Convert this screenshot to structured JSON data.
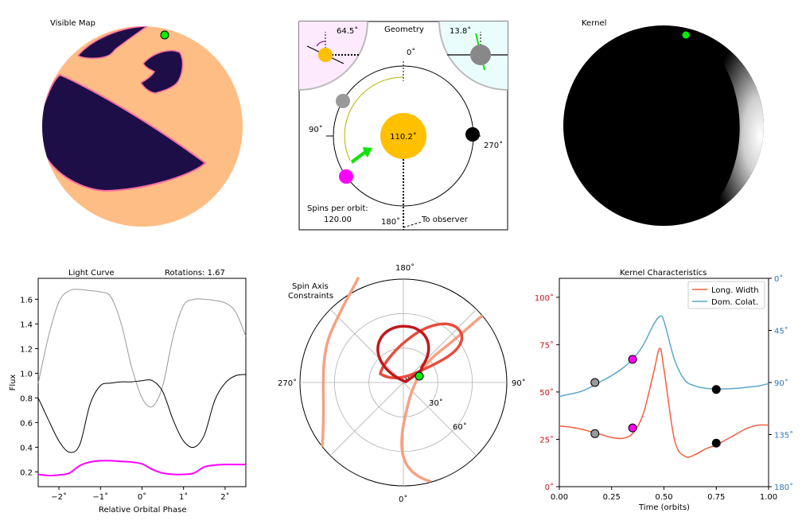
{
  "panels": {
    "visible_map": {
      "title": "Visible Map"
    },
    "geometry": {
      "title": "Geometry",
      "left_inset_angle": "64.5˚",
      "right_inset_angle": "13.8˚",
      "star_label": "110.2˚",
      "angle_labels": {
        "top": "0˚",
        "left": "90˚",
        "right": "270˚",
        "bottom": "180˚"
      },
      "spins_label": "Spins per orbit:",
      "spins_value": "120.00",
      "observer_label": "To observer",
      "colors": {
        "star": "#FFC000",
        "left_inset": "#FDEAFD",
        "right_inset": "#EAFDFD",
        "arrow": "#12E40A",
        "planet_gray": "#999999",
        "planet_magenta": "#FF00FF",
        "planet_black": "#000000"
      }
    },
    "kernel": {
      "title": "Kernel"
    }
  },
  "chart_data": [
    {
      "type": "line",
      "title": "Light Curve",
      "annotation": "Rotations: 1.67",
      "xlabel": "Relative Orbital Phase",
      "ylabel": "Flux",
      "xlim": [
        -2.5,
        2.5
      ],
      "ylim": [
        0.08,
        1.77
      ],
      "xticks": [
        "−2˚",
        "−1˚",
        "0˚",
        "1˚",
        "2˚"
      ],
      "yticks": [
        "0.2",
        "0.4",
        "0.6",
        "0.8",
        "1.0",
        "1.2",
        "1.4",
        "1.6"
      ],
      "x": [
        -2.5,
        -2.25,
        -2.0,
        -1.75,
        -1.5,
        -1.25,
        -1.0,
        -0.75,
        -0.5,
        -0.25,
        0.0,
        0.25,
        0.5,
        0.75,
        1.0,
        1.25,
        1.5,
        1.75,
        2.0,
        2.25,
        2.5
      ],
      "series": [
        {
          "color": "#999999",
          "values": [
            0.92,
            1.3,
            1.58,
            1.67,
            1.68,
            1.67,
            1.66,
            1.62,
            1.4,
            1.05,
            0.8,
            0.73,
            0.9,
            1.3,
            1.55,
            1.6,
            1.6,
            1.59,
            1.57,
            1.5,
            1.3
          ]
        },
        {
          "color": "#000000",
          "values": [
            0.8,
            0.62,
            0.45,
            0.36,
            0.42,
            0.75,
            0.9,
            0.92,
            0.93,
            0.93,
            0.94,
            0.94,
            0.85,
            0.62,
            0.45,
            0.4,
            0.5,
            0.78,
            0.92,
            0.98,
            0.99
          ]
        },
        {
          "color": "#FF00FF",
          "values": [
            0.18,
            0.17,
            0.175,
            0.19,
            0.25,
            0.28,
            0.29,
            0.29,
            0.285,
            0.28,
            0.265,
            0.22,
            0.19,
            0.18,
            0.18,
            0.19,
            0.24,
            0.255,
            0.26,
            0.26,
            0.26
          ]
        }
      ]
    },
    {
      "type": "polar",
      "title": "Spin Axis\nConstraints",
      "angle_labels": {
        "top": "180˚",
        "right": "90˚",
        "bottom": "0˚",
        "left": "270˚"
      },
      "radial_ticks": [
        "0˚",
        "30˚",
        "60˚"
      ],
      "rmax": 90,
      "marker": {
        "r": 5,
        "theta": 90,
        "color": "#00EE00"
      },
      "contours": [
        {
          "color": "#F8A080",
          "points": [
            [
              100,
              0
            ],
            [
              90,
              20
            ],
            [
              75,
              40
            ],
            [
              60,
              60
            ],
            [
              48,
              80
            ],
            [
              40,
              100
            ],
            [
              30,
              120
            ],
            [
              24,
              140
            ],
            [
              22,
              160
            ],
            [
              26,
              180
            ],
            [
              34,
              200
            ],
            [
              46,
              220
            ],
            [
              60,
              240
            ],
            [
              74,
              258
            ],
            [
              88,
              274
            ],
            [
              100,
              290
            ],
            [
              110,
              305
            ]
          ]
        },
        {
          "color": "#E84C3C",
          "points": [
            [
              12,
              -40
            ],
            [
              30,
              -10
            ],
            [
              55,
              20
            ],
            [
              78,
              40
            ],
            [
              80,
              60
            ],
            [
              60,
              80
            ],
            [
              40,
              100
            ],
            [
              20,
              140
            ],
            [
              10,
              200
            ],
            [
              8,
              260
            ],
            [
              12,
              320
            ]
          ]
        },
        {
          "color": "#C0181C",
          "points": [
            [
              20,
              120
            ],
            [
              26,
              150
            ],
            [
              35,
              180
            ],
            [
              45,
              200
            ],
            [
              40,
              230
            ],
            [
              25,
              250
            ],
            [
              15,
              260
            ],
            [
              5,
              300
            ],
            [
              8,
              30
            ],
            [
              15,
              60
            ],
            [
              18,
              90
            ]
          ]
        }
      ]
    },
    {
      "type": "line",
      "title": "Kernel Characteristics",
      "xlabel": "Time (orbits)",
      "xlim": [
        0,
        1
      ],
      "xticks": [
        "0.00",
        "0.25",
        "0.50",
        "0.75",
        "1.00"
      ],
      "left_yticks": [
        "0˚",
        "25˚",
        "50˚",
        "75˚",
        "100˚"
      ],
      "left_ylim": [
        0,
        110
      ],
      "right_yticks": [
        "0˚",
        "45˚",
        "90˚",
        "135˚",
        "180˚"
      ],
      "right_ylim": [
        180,
        0
      ],
      "legend": [
        "Long. Width",
        "Dom. Colat."
      ],
      "legend_position": "upper right",
      "x": [
        0.0,
        0.05,
        0.1,
        0.15,
        0.2,
        0.25,
        0.3,
        0.35,
        0.4,
        0.45,
        0.48,
        0.5,
        0.55,
        0.6,
        0.65,
        0.7,
        0.75,
        0.8,
        0.85,
        0.9,
        0.95,
        1.0
      ],
      "series": [
        {
          "name": "Long. Width",
          "color": "#F06040",
          "axis": "left",
          "values": [
            32,
            31.5,
            30.5,
            29,
            27.5,
            26,
            25.5,
            28,
            38,
            60,
            73,
            62,
            25,
            16,
            17,
            20,
            22,
            25,
            28,
            31,
            32.5,
            32.5
          ]
        },
        {
          "name": "Dom. Colat.",
          "color": "#5BA8CC",
          "axis": "right",
          "values": [
            102,
            100,
            98,
            94,
            89,
            84,
            78,
            70,
            58,
            40,
            33,
            37,
            70,
            88,
            93,
            95,
            95.5,
            95.5,
            95,
            94,
            93,
            91
          ]
        }
      ],
      "markers": [
        {
          "x": 0.17,
          "left": 28,
          "right": 90,
          "color": "#999999"
        },
        {
          "x": 0.35,
          "left": 31,
          "right": 70,
          "color": "#FF00FF"
        },
        {
          "x": 0.75,
          "left": 23,
          "right": 96,
          "color": "#000000"
        }
      ]
    }
  ]
}
